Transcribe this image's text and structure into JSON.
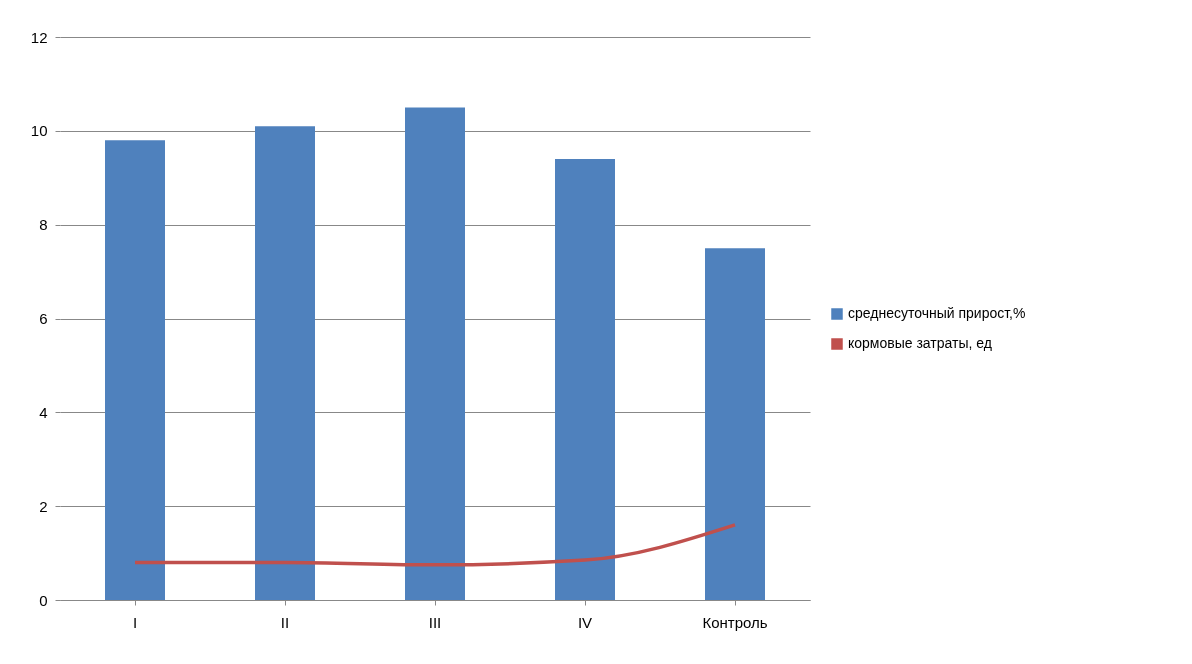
{
  "chart_data": {
    "type": "bar",
    "categories": [
      "I",
      "II",
      "III",
      "IV",
      "Контроль"
    ],
    "series": [
      {
        "name": "среднесуточный прирост,%",
        "color": "#4f81bd",
        "values": [
          9.8,
          10.1,
          10.5,
          9.4,
          7.5
        ]
      },
      {
        "name": "кормовые затраты, ед",
        "type": "line",
        "color": "#c0504d",
        "values": [
          0.8,
          0.8,
          0.75,
          0.85,
          1.6
        ],
        "marker": "none"
      }
    ],
    "ylim": [
      0,
      12
    ],
    "yticks": [
      0,
      2,
      4,
      6,
      8,
      10,
      12
    ],
    "grid": "y",
    "legend": "right"
  }
}
